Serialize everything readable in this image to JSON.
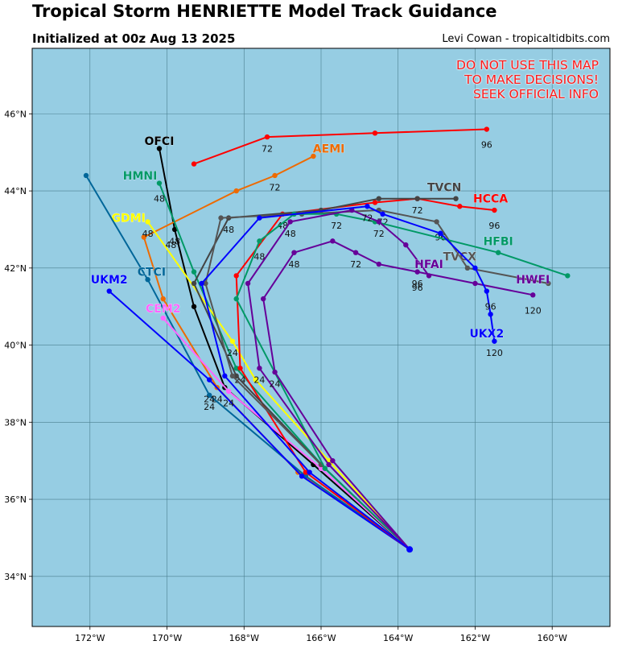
{
  "header": {
    "title": "Tropical Storm HENRIETTE Model Track Guidance",
    "subtitle": "Initialized at 00z Aug 13 2025",
    "credit": "Levi Cowan - tropicaltidbits.com"
  },
  "warning": {
    "line1": "DO NOT USE THIS MAP",
    "line2": "TO MAKE DECISIONS!",
    "line3": "SEEK OFFICIAL INFO"
  },
  "map": {
    "ocean_color": "#96cde3",
    "lon_range": [
      -173.5,
      -158.5
    ],
    "lat_range": [
      32.7,
      47.7
    ],
    "lon_ticks": [
      -172,
      -170,
      -168,
      -166,
      -164,
      -162,
      -160
    ],
    "lat_ticks": [
      34,
      36,
      38,
      40,
      42,
      44,
      46
    ],
    "lon_tick_labels": [
      "172°W",
      "170°W",
      "168°W",
      "166°W",
      "164°W",
      "162°W",
      "160°W"
    ],
    "lat_tick_labels": [
      "34°N",
      "36°N",
      "38°N",
      "40°N",
      "42°N",
      "44°N",
      "46°N"
    ]
  },
  "chart_data": {
    "type": "map-tracks",
    "origin": [
      -163.7,
      34.7
    ],
    "models": [
      {
        "name": "OFCI",
        "color": "#000000",
        "label_at": [
          -170.2,
          45.3
        ],
        "points": [
          [
            -163.7,
            34.7
          ],
          [
            -166.2,
            36.9
          ],
          [
            -168.5,
            38.9
          ],
          [
            -169.3,
            41.0
          ],
          [
            -169.8,
            43.0
          ],
          [
            -170.2,
            45.1
          ]
        ],
        "hour_labels": [
          {
            "t": "48",
            "at": [
              -169.8,
              42.7
            ]
          }
        ]
      },
      {
        "name": "AEMI",
        "color": "#ee6a00",
        "label_at": [
          -165.8,
          45.1
        ],
        "points": [
          [
            -163.7,
            34.7
          ],
          [
            -166.6,
            36.7
          ],
          [
            -168.7,
            38.9
          ],
          [
            -170.1,
            41.2
          ],
          [
            -170.6,
            42.8
          ],
          [
            -168.2,
            44.0
          ],
          [
            -167.2,
            44.4
          ],
          [
            -166.2,
            44.9
          ]
        ],
        "hour_labels": [
          {
            "t": "48",
            "at": [
              -169.9,
              42.6
            ]
          },
          {
            "t": "72",
            "at": [
              -167.2,
              44.1
            ]
          },
          {
            "t": "24",
            "at": [
              -168.7,
              38.6
            ]
          }
        ]
      },
      {
        "name": "HMNI",
        "color": "#009966",
        "label_at": [
          -170.7,
          44.4
        ],
        "points": [
          [
            -163.7,
            34.7
          ],
          [
            -165.9,
            36.8
          ],
          [
            -168.2,
            39.4
          ],
          [
            -169.3,
            41.9
          ],
          [
            -170.2,
            44.2
          ]
        ],
        "hour_labels": [
          {
            "t": "48",
            "at": [
              -170.2,
              43.8
            ]
          }
        ]
      },
      {
        "name": "GDMI",
        "color": "#ffff00",
        "label_at": [
          -171.0,
          43.3
        ],
        "points": [
          [
            -163.7,
            34.7
          ],
          [
            -165.8,
            37.0
          ],
          [
            -167.7,
            39.1
          ],
          [
            -168.3,
            40.1
          ],
          [
            -170.5,
            43.2
          ]
        ],
        "hour_labels": [
          {
            "t": "48",
            "at": [
              -170.5,
              42.9
            ]
          },
          {
            "t": "24",
            "at": [
              -168.3,
              39.8
            ]
          }
        ]
      },
      {
        "name": "CTCI",
        "color": "#006699",
        "label_at": [
          -170.4,
          41.9
        ],
        "points": [
          [
            -163.7,
            34.7
          ],
          [
            -166.4,
            36.6
          ],
          [
            -168.9,
            38.7
          ],
          [
            -170.5,
            41.7
          ],
          [
            -172.1,
            44.4
          ]
        ],
        "hour_labels": [
          {
            "t": "24",
            "at": [
              -168.9,
              38.4
            ]
          }
        ]
      },
      {
        "name": "UKM2",
        "color": "#0000ff",
        "label_at": [
          -171.5,
          41.7
        ],
        "points": [
          [
            -163.7,
            34.7
          ],
          [
            -166.5,
            36.6
          ],
          [
            -168.9,
            39.1
          ],
          [
            -171.5,
            41.4
          ]
        ],
        "hour_labels": [
          {
            "t": "24",
            "at": [
              -168.9,
              38.6
            ]
          }
        ]
      },
      {
        "name": "CEM2",
        "color": "#ff66ff",
        "label_at": [
          -170.1,
          40.95
        ],
        "points": [
          [
            -163.7,
            34.7
          ],
          [
            -166.0,
            36.8
          ],
          [
            -168.4,
            38.8
          ],
          [
            -170.1,
            40.7
          ]
        ],
        "hour_labels": [
          {
            "t": "24",
            "at": [
              -168.4,
              38.5
            ]
          }
        ]
      },
      {
        "name": "HCCA",
        "color": "#ff0000",
        "label_at": [
          -161.6,
          43.8
        ],
        "points": [
          [
            -163.7,
            34.7
          ],
          [
            -166.4,
            36.7
          ],
          [
            -168.1,
            39.4
          ],
          [
            -168.2,
            41.8
          ],
          [
            -167.0,
            43.4
          ],
          [
            -164.6,
            43.7
          ],
          [
            -163.5,
            43.8
          ],
          [
            -162.4,
            43.6
          ],
          [
            -161.5,
            43.5
          ]
        ],
        "hour_labels": [
          {
            "t": "24",
            "at": [
              -168.1,
              39.1
            ]
          },
          {
            "t": "48",
            "at": [
              -167.0,
              43.1
            ]
          },
          {
            "t": "72",
            "at": [
              -163.5,
              43.5
            ]
          },
          {
            "t": "96",
            "at": [
              -161.5,
              43.1
            ]
          }
        ]
      },
      {
        "name": "TVCN",
        "color": "#444444",
        "label_at": [
          -162.8,
          44.1
        ],
        "points": [
          [
            -163.7,
            34.7
          ],
          [
            -166.0,
            36.9
          ],
          [
            -168.2,
            39.2
          ],
          [
            -169.3,
            41.6
          ],
          [
            -168.4,
            43.3
          ],
          [
            -166.0,
            43.5
          ],
          [
            -164.5,
            43.8
          ],
          [
            -163.5,
            43.8
          ],
          [
            -162.5,
            43.8
          ]
        ],
        "hour_labels": [
          {
            "t": "48",
            "at": [
              -168.4,
              43.0
            ]
          }
        ]
      },
      {
        "name": "TVCX",
        "color": "#555555",
        "label_at": [
          -162.4,
          42.3
        ],
        "points": [
          [
            -163.7,
            34.7
          ],
          [
            -166.0,
            36.9
          ],
          [
            -168.3,
            39.2
          ],
          [
            -169.0,
            41.6
          ],
          [
            -168.6,
            43.3
          ],
          [
            -166.5,
            43.4
          ],
          [
            -164.5,
            43.5
          ],
          [
            -163.0,
            43.2
          ],
          [
            -162.2,
            42.0
          ],
          [
            -160.1,
            41.6
          ]
        ],
        "hour_labels": [
          {
            "t": "72",
            "at": [
              -164.4,
              43.2
            ]
          },
          {
            "t": "96",
            "at": [
              -162.9,
              42.8
            ]
          }
        ]
      },
      {
        "name": "HFBI",
        "color": "#009966",
        "label_at": [
          -161.4,
          42.7
        ],
        "points": [
          [
            -163.7,
            34.7
          ],
          [
            -165.9,
            36.8
          ],
          [
            -168.2,
            41.2
          ],
          [
            -167.6,
            42.7
          ],
          [
            -166.7,
            43.4
          ],
          [
            -165.6,
            43.4
          ],
          [
            -164.6,
            43.2
          ],
          [
            -161.4,
            42.4
          ],
          [
            -159.6,
            41.8
          ]
        ],
        "hour_labels": [
          {
            "t": "48",
            "at": [
              -167.6,
              42.3
            ]
          },
          {
            "t": "72",
            "at": [
              -165.6,
              43.1
            ]
          }
        ]
      },
      {
        "name": "HFAI",
        "color": "#660099",
        "label_at": [
          -163.2,
          42.1
        ],
        "points": [
          [
            -163.7,
            34.7
          ],
          [
            -165.8,
            36.9
          ],
          [
            -167.6,
            39.4
          ],
          [
            -167.9,
            41.6
          ],
          [
            -166.8,
            43.2
          ],
          [
            -165.2,
            43.5
          ],
          [
            -164.5,
            43.2
          ],
          [
            -163.8,
            42.6
          ],
          [
            -163.2,
            41.8
          ]
        ],
        "hour_labels": [
          {
            "t": "24",
            "at": [
              -167.6,
              39.1
            ]
          },
          {
            "t": "48",
            "at": [
              -166.8,
              42.9
            ]
          },
          {
            "t": "72",
            "at": [
              -164.5,
              42.9
            ]
          },
          {
            "t": "96",
            "at": [
              -163.5,
              41.5
            ]
          }
        ]
      },
      {
        "name": "HWFI",
        "color": "#660099",
        "label_at": [
          -160.5,
          41.7
        ],
        "points": [
          [
            -163.7,
            34.7
          ],
          [
            -165.7,
            37.0
          ],
          [
            -167.2,
            39.3
          ],
          [
            -167.5,
            41.2
          ],
          [
            -166.7,
            42.4
          ],
          [
            -165.7,
            42.7
          ],
          [
            -165.1,
            42.4
          ],
          [
            -164.5,
            42.1
          ],
          [
            -163.5,
            41.9
          ],
          [
            -162.0,
            41.6
          ],
          [
            -160.5,
            41.3
          ]
        ],
        "hour_labels": [
          {
            "t": "24",
            "at": [
              -167.2,
              39.0
            ]
          },
          {
            "t": "48",
            "at": [
              -166.7,
              42.1
            ]
          },
          {
            "t": "72",
            "at": [
              -165.1,
              42.1
            ]
          },
          {
            "t": "96",
            "at": [
              -163.5,
              41.6
            ]
          },
          {
            "t": "120",
            "at": [
              -160.5,
              40.9
            ]
          }
        ]
      },
      {
        "name": "UKX2",
        "color": "#0000ff",
        "label_at": [
          -161.7,
          40.3
        ],
        "points": [
          [
            -163.7,
            34.7
          ],
          [
            -166.3,
            36.7
          ],
          [
            -168.5,
            39.2
          ],
          [
            -169.1,
            41.6
          ],
          [
            -167.6,
            43.3
          ],
          [
            -164.8,
            43.6
          ],
          [
            -164.4,
            43.4
          ],
          [
            -162.9,
            42.9
          ],
          [
            -162.0,
            42.0
          ],
          [
            -161.7,
            41.4
          ],
          [
            -161.6,
            40.8
          ],
          [
            -161.5,
            40.1
          ]
        ],
        "hour_labels": [
          {
            "t": "72",
            "at": [
              -164.8,
              43.3
            ]
          },
          {
            "t": "96",
            "at": [
              -161.6,
              41.0
            ]
          },
          {
            "t": "120",
            "at": [
              -161.5,
              39.8
            ]
          }
        ]
      },
      {
        "name": "",
        "color": "#ff0000",
        "label_at": [
          -161.6,
          45.5
        ],
        "points": [
          [
            -169.3,
            44.7
          ],
          [
            -167.4,
            45.4
          ],
          [
            -164.6,
            45.5
          ],
          [
            -161.7,
            45.6
          ]
        ],
        "hour_labels": [
          {
            "t": "72",
            "at": [
              -167.4,
              45.1
            ]
          },
          {
            "t": "96",
            "at": [
              -161.7,
              45.2
            ]
          }
        ]
      }
    ]
  }
}
